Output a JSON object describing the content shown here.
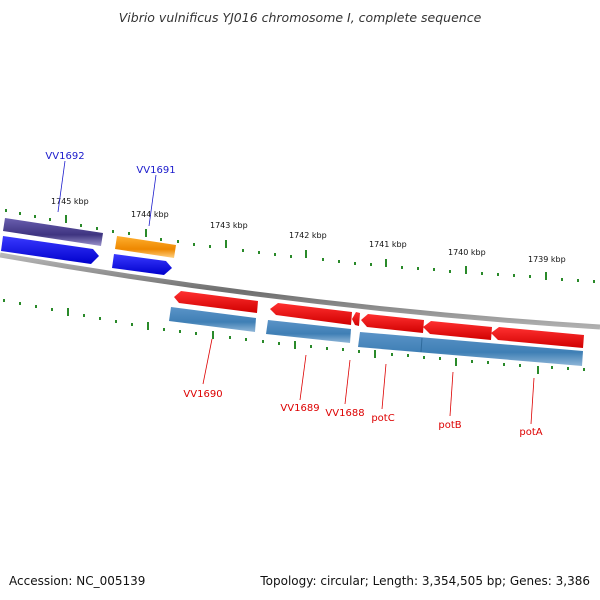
{
  "title": "Vibrio vulnificus YJ016 chromosome I, complete sequence",
  "footer": {
    "accession": "Accession: NC_005139",
    "summary": "Topology: circular; Length: 3,354,505 bp; Genes: 3,386"
  },
  "colors": {
    "backbone": "#808080",
    "ticks": "#1e7a1e",
    "plus_gene": "#0000ee",
    "plus_feature_dark": "#4a4090",
    "plus_feature_orange": "#ff9900",
    "minus_gene": "#ee0000",
    "minus_feature": "#3f7fb5",
    "plus_label": "#1a1acc",
    "minus_label": "#dd0000"
  },
  "scale_labels": [
    "1745 kbp",
    "1744 kbp",
    "1743 kbp",
    "1742 kbp",
    "1741 kbp",
    "1740 kbp",
    "1739 kbp"
  ],
  "plus_genes": [
    {
      "name": "VV1692",
      "color": "#4a4090"
    },
    {
      "name": "VV1691",
      "color": "#ff9900"
    }
  ],
  "minus_genes": [
    {
      "name": "VV1690"
    },
    {
      "name": "VV1689"
    },
    {
      "name": "VV1688"
    },
    {
      "name": "potC"
    },
    {
      "name": "potB"
    },
    {
      "name": "potA"
    }
  ]
}
